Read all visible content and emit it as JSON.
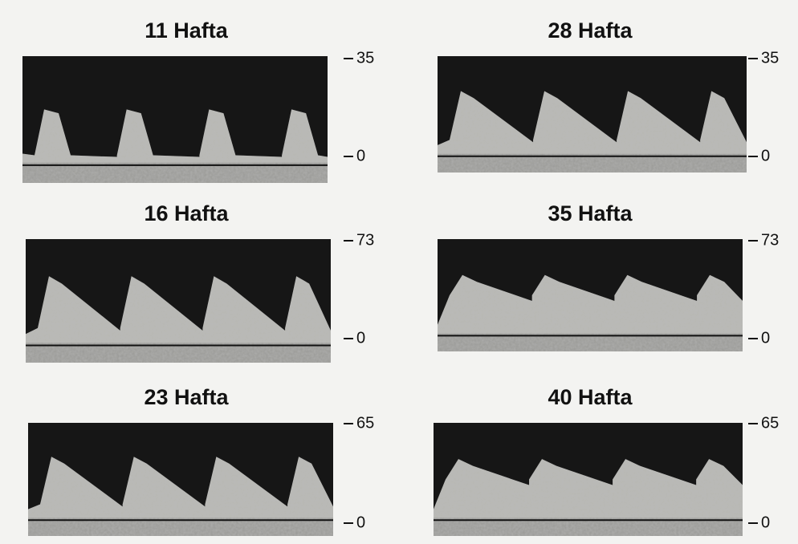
{
  "panels": [
    {
      "title": "11 Hafta",
      "scale_top": 35,
      "scale_bottom": 0
    },
    {
      "title": "28 Hafta",
      "scale_top": 35,
      "scale_bottom": 0
    },
    {
      "title": "16 Hafta",
      "scale_top": 73,
      "scale_bottom": 0
    },
    {
      "title": "35 Hafta",
      "scale_top": 73,
      "scale_bottom": 0
    },
    {
      "title": "23 Hafta",
      "scale_top": 65,
      "scale_bottom": 0
    },
    {
      "title": "40 Hafta",
      "scale_top": 65,
      "scale_bottom": 0
    }
  ]
}
